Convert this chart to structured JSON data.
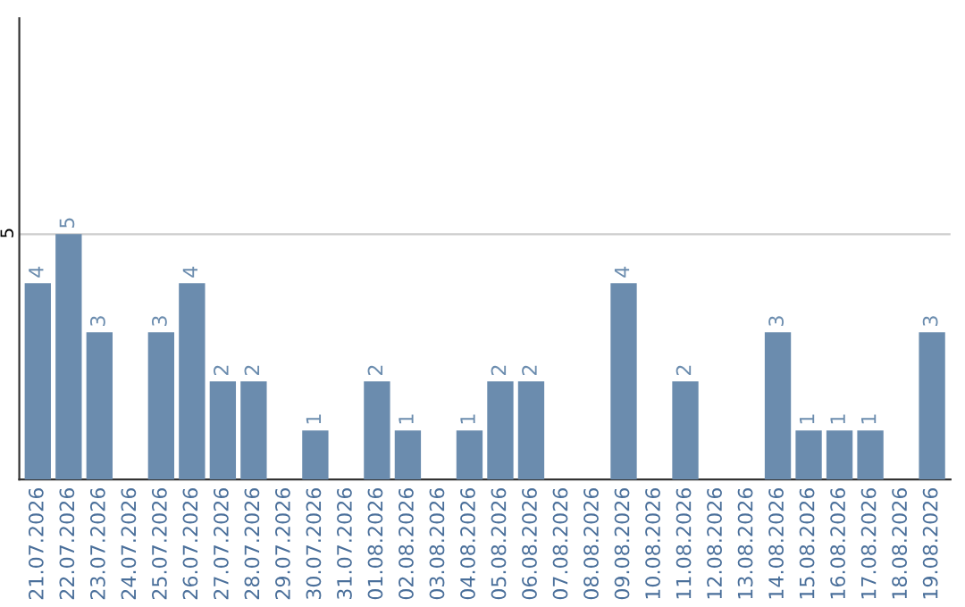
{
  "chart_data": {
    "type": "bar",
    "categories": [
      "21.07.2026",
      "22.07.2026",
      "23.07.2026",
      "24.07.2026",
      "25.07.2026",
      "26.07.2026",
      "27.07.2026",
      "28.07.2026",
      "29.07.2026",
      "30.07.2026",
      "31.07.2026",
      "01.08.2026",
      "02.08.2026",
      "03.08.2026",
      "04.08.2026",
      "05.08.2026",
      "06.08.2026",
      "07.08.2026",
      "08.08.2026",
      "09.08.2026",
      "10.08.2026",
      "11.08.2026",
      "12.08.2026",
      "13.08.2026",
      "14.08.2026",
      "15.08.2026",
      "16.08.2026",
      "17.08.2026",
      "18.08.2026",
      "19.08.2026"
    ],
    "values": [
      4,
      5,
      3,
      0,
      3,
      4,
      2,
      2,
      0,
      1,
      0,
      2,
      1,
      0,
      1,
      2,
      2,
      0,
      0,
      4,
      0,
      2,
      0,
      0,
      3,
      1,
      1,
      1,
      0,
      3
    ],
    "value_labels": [
      "4",
      "5",
      "3",
      null,
      "3",
      "4",
      "2",
      "2",
      null,
      "1",
      null,
      "2",
      "1",
      null,
      "1",
      "2",
      "2",
      null,
      null,
      "4",
      null,
      "2",
      null,
      null,
      "3",
      "1",
      "1",
      "1",
      null,
      "3"
    ],
    "color": "#6b8cae",
    "ylim": [
      0,
      9.4
    ],
    "yticks": [
      5
    ],
    "grid": "y"
  }
}
